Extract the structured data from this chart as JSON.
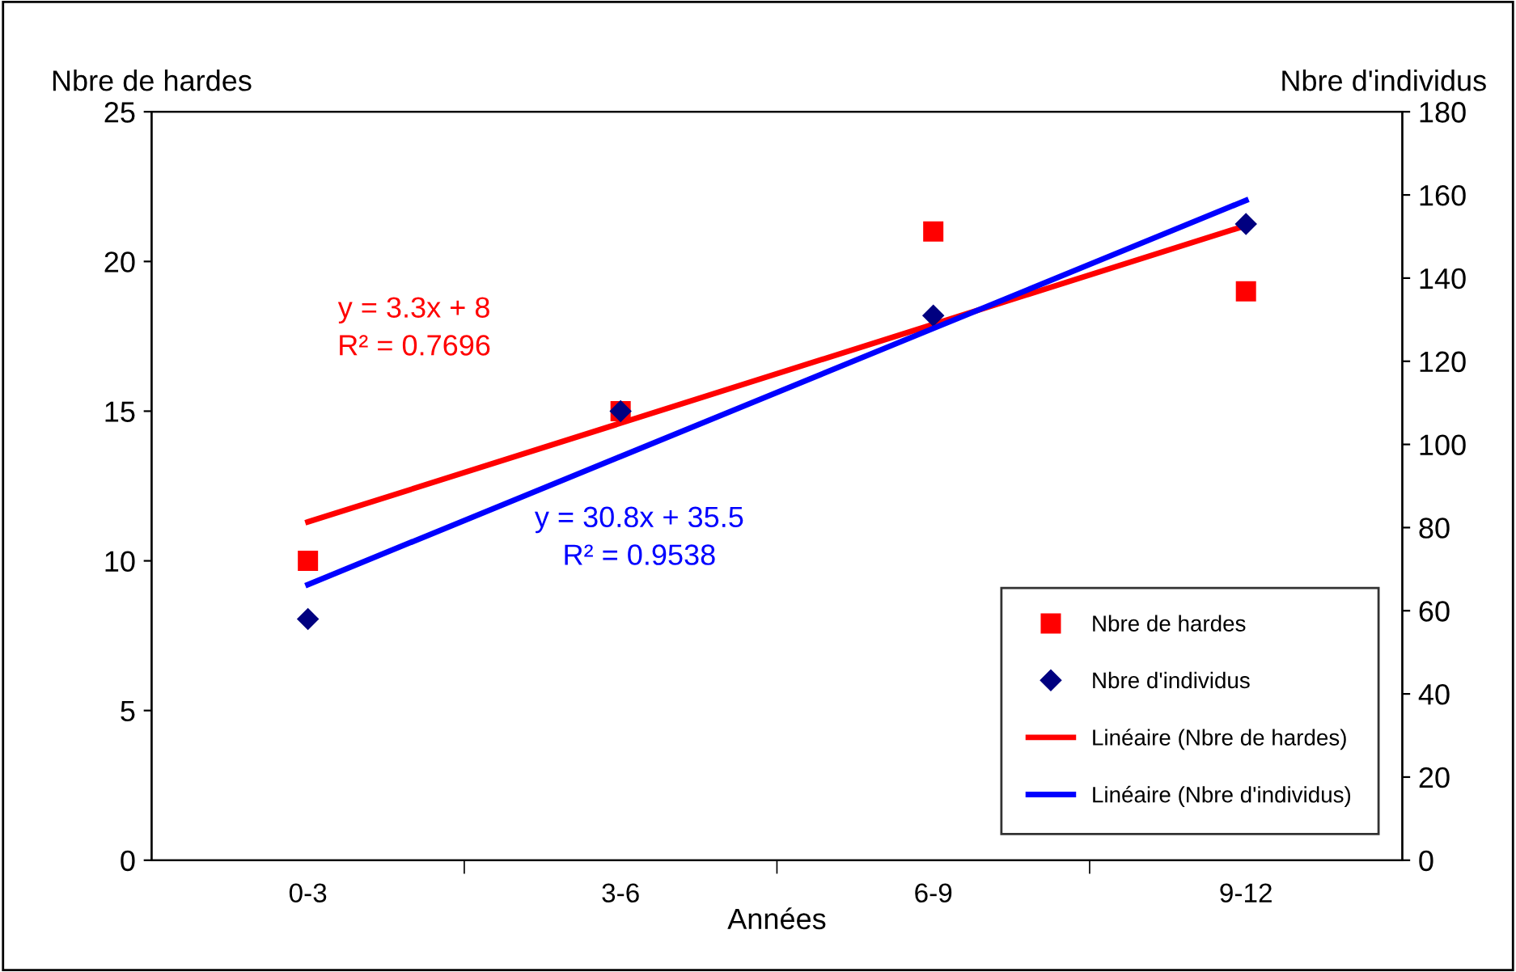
{
  "chart_data": {
    "type": "scatter",
    "categories": [
      "0-3",
      "3-6",
      "6-9",
      "9-12"
    ],
    "xlabel": "Années",
    "ylabel": "Nbre de hardes",
    "y2label": "Nbre d'individus",
    "series": [
      {
        "name": "Nbre de hardes",
        "marker": "square",
        "color": "#ff0000",
        "values": [
          10,
          15,
          21,
          19
        ]
      },
      {
        "name": "Nbre d'individus",
        "marker": "diamond",
        "color": "#000080",
        "axis": "y2",
        "values": [
          58,
          108,
          131,
          153
        ]
      },
      {
        "name": "Linéaire (Nbre de hardes)",
        "type": "line",
        "color": "#ff0000",
        "values": [
          11.3,
          14.6,
          17.9,
          21.2
        ]
      },
      {
        "name": "Linéaire (Nbre d'individus)",
        "type": "line",
        "color": "#0000ff",
        "axis": "y2",
        "values": [
          66.3,
          97.1,
          127.9,
          158.7
        ]
      }
    ],
    "annotations": [
      "y = 3.3x + 8\nR² = 0.7696",
      "y = 30.8x + 35.5\nR² = 0.9538"
    ],
    "ylim": [
      0,
      25
    ],
    "yticks": [
      0,
      5,
      10,
      15,
      20,
      25
    ],
    "y2lim": [
      0,
      180
    ],
    "y2ticks": [
      0,
      20,
      40,
      60,
      80,
      100,
      120,
      140,
      160,
      180
    ],
    "grid": false,
    "legend": "bottom right"
  }
}
